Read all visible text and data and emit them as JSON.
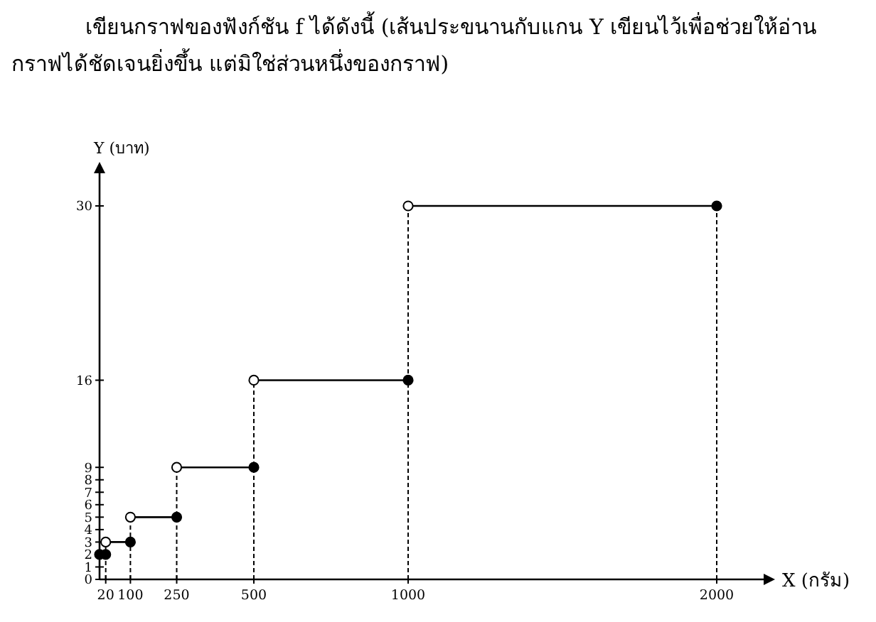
{
  "chart_data": {
    "type": "step",
    "title": "เขียนกราฟของฟังก์ชัน f ได้ดังนี้ (เส้นประขนานกับแกน Y เขียนไว้เพื่อช่วยให้อ่านกราฟได้ชัดเจนยิ่งขึ้น แต่มิใช่ส่วนหนึ่งของกราฟ)",
    "xlabel": "X (กรัม)",
    "ylabel": "Y (บาท)",
    "xlim": [
      0,
      2000
    ],
    "ylim": [
      0,
      30
    ],
    "xticks": [
      20,
      100,
      250,
      500,
      1000,
      2000
    ],
    "yticks": [
      0,
      1,
      2,
      3,
      4,
      5,
      6,
      7,
      8,
      9,
      16,
      30
    ],
    "marker": "circle",
    "grid": false,
    "series": [
      {
        "type": "scatter",
        "color": "#000000",
        "x": [
          0,
          20
        ],
        "values": [
          2,
          2
        ]
      },
      {
        "color": "#000000",
        "x": [
          20,
          100
        ],
        "values": [
          3,
          3
        ]
      },
      {
        "color": "#000000",
        "x": [
          100,
          250
        ],
        "values": [
          5,
          5
        ]
      },
      {
        "color": "#000000",
        "x": [
          250,
          500
        ],
        "values": [
          9,
          9
        ]
      },
      {
        "color": "#000000",
        "x": [
          500,
          1000
        ],
        "values": [
          16,
          16
        ]
      },
      {
        "color": "#000000",
        "x": [
          1000,
          2000
        ],
        "values": [
          30,
          30
        ]
      }
    ],
    "ref_lines": [
      {
        "axis": "x",
        "value": 20,
        "line_style": "dashed"
      },
      {
        "axis": "x",
        "value": 100,
        "line_style": "dashed"
      },
      {
        "axis": "x",
        "value": 250,
        "line_style": "dashed"
      },
      {
        "axis": "x",
        "value": 500,
        "line_style": "dashed"
      },
      {
        "axis": "x",
        "value": 1000,
        "line_style": "dashed"
      },
      {
        "axis": "x",
        "value": 2000,
        "line_style": "dashed"
      }
    ]
  }
}
